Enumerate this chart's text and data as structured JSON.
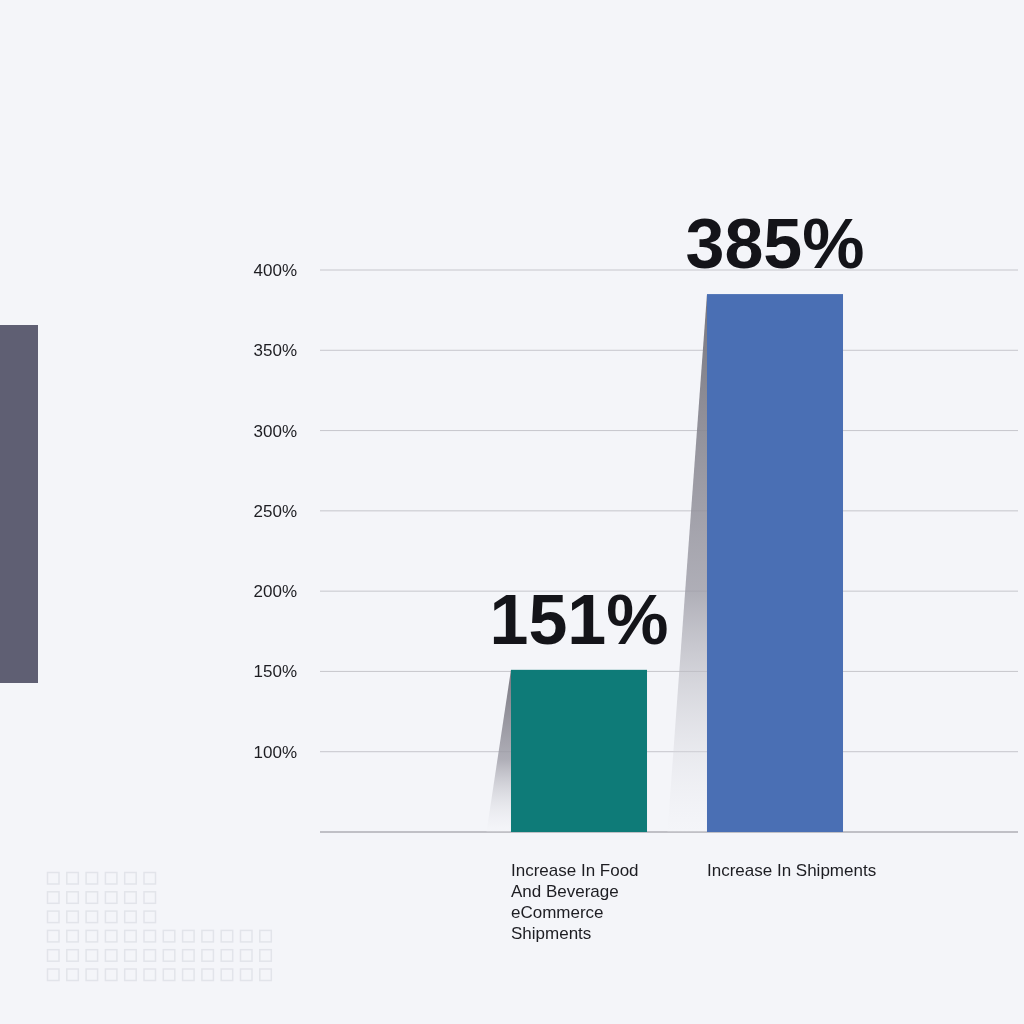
{
  "chart_data": {
    "type": "bar",
    "categories": [
      "Increase In Food And Beverage eCommerce Shipments",
      "Increase In Shipments"
    ],
    "values": [
      151,
      385
    ],
    "colors": [
      "#0e7b78",
      "#4a6fb4"
    ],
    "value_labels": [
      "151%",
      "385%"
    ],
    "ylim": [
      50,
      400
    ],
    "yticks": [
      {
        "value": 100,
        "label": "100%"
      },
      {
        "value": 150,
        "label": "150%"
      },
      {
        "value": 200,
        "label": "200%"
      },
      {
        "value": 250,
        "label": "250%"
      },
      {
        "value": 300,
        "label": "300%"
      },
      {
        "value": 350,
        "label": "350%"
      },
      {
        "value": 400,
        "label": "400%"
      }
    ],
    "grid": "y"
  }
}
